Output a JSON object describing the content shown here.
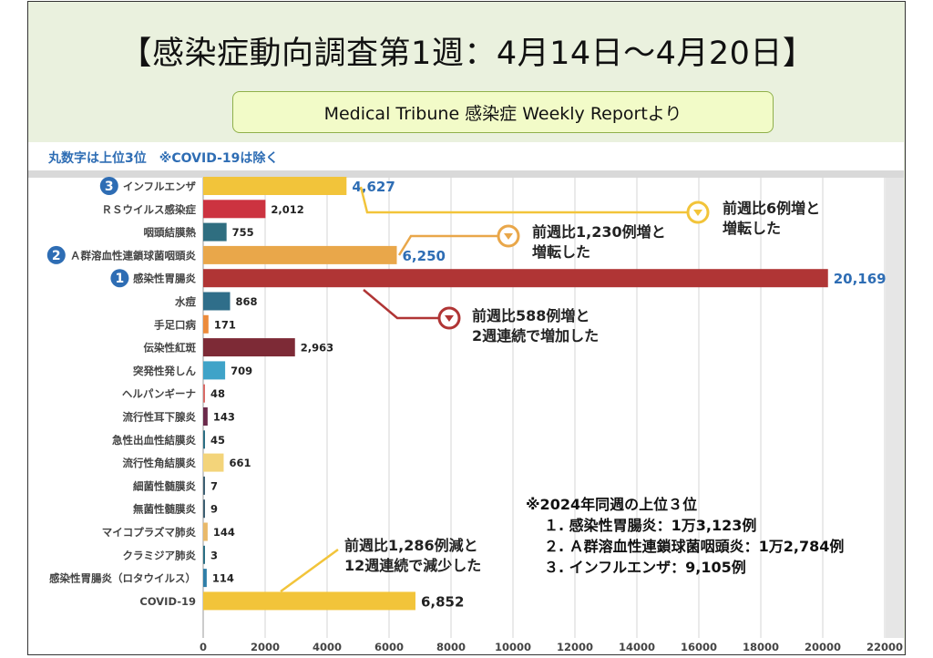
{
  "slide": {
    "title": "【感染症動向調査第1週：4月14日～4月20日】",
    "source": "Medical Tribune 感染症 Weekly Reportより",
    "bg_color": "#eaf1de"
  },
  "chart_data": {
    "type": "bar",
    "orientation": "horizontal",
    "header_note": "丸数字は上位3位　※COVID-19は除く",
    "categories": [
      "インフルエンザ",
      "ＲＳウイルス感染症",
      "咽頭結膜熱",
      "Ａ群溶血性連鎖球菌咽頭炎",
      "感染性胃腸炎",
      "水痘",
      "手足口病",
      "伝染性紅斑",
      "突発性発しん",
      "ヘルパンギーナ",
      "流行性耳下腺炎",
      "急性出血性結膜炎",
      "流行性角結膜炎",
      "細菌性髄膜炎",
      "無菌性髄膜炎",
      "マイコプラズマ肺炎",
      "クラミジア肺炎",
      "感染性胃腸炎（ロタウイルス）",
      "COVID-19"
    ],
    "values": [
      4627,
      2012,
      755,
      6250,
      20169,
      868,
      171,
      2963,
      709,
      48,
      143,
      45,
      661,
      7,
      9,
      144,
      3,
      114,
      6852
    ],
    "value_labels": [
      "4,627",
      "2,012",
      "755",
      "6,250",
      "20,169",
      "868",
      "171",
      "2,963",
      "709",
      "48",
      "143",
      "45",
      "661",
      "7",
      "9",
      "144",
      "3",
      "114",
      "6,852"
    ],
    "colors": [
      "#f2c43a",
      "#cc3340",
      "#2f6e80",
      "#e9a74a",
      "#b03535",
      "#2f6e8a",
      "#ec8b3b",
      "#7d2a36",
      "#3fa3c8",
      "#d96b67",
      "#6b2a4a",
      "#2b6f84",
      "#f3d47a",
      "#3d5f72",
      "#3d5f72",
      "#e9b96a",
      "#2b6f84",
      "#2f7ea8",
      "#f2c43a"
    ],
    "ranks": {
      "インフルエンザ": "3",
      "Ａ群溶血性連鎖球菌咽頭炎": "2",
      "感染性胃腸炎": "1"
    },
    "x_ticks": [
      "0",
      "2000",
      "4000",
      "6000",
      "8000",
      "10000",
      "12000",
      "14000",
      "16000",
      "18000",
      "20000",
      "22000"
    ],
    "xlim": [
      0,
      22000
    ],
    "grid": true,
    "annotations": [
      {
        "category": "インフルエンザ",
        "lines": [
          "前週比6例増と",
          "増転した"
        ]
      },
      {
        "category": "Ａ群溶血性連鎖球菌咽頭炎",
        "lines": [
          "前週比1,230例増と",
          "増転した"
        ]
      },
      {
        "category": "感染性胃腸炎",
        "lines": [
          "前週比588例増と",
          "2週連続で増加した"
        ]
      },
      {
        "category": "COVID-19",
        "lines": [
          "前週比1,286例減と",
          "12週連続で減少した"
        ]
      }
    ],
    "note_block": {
      "heading": "※2024年同週の上位３位",
      "items": [
        "１. 感染性胃腸炎：1万3,123例",
        "２. Ａ群溶血性連鎖球菌咽頭炎：1万2,784例",
        "３. インフルエンザ：9,105例"
      ]
    },
    "highlight_color": "#2e6db4",
    "callout_colors": [
      "#f2c43a",
      "#e9a74a",
      "#b03535",
      "#f2c43a"
    ]
  }
}
